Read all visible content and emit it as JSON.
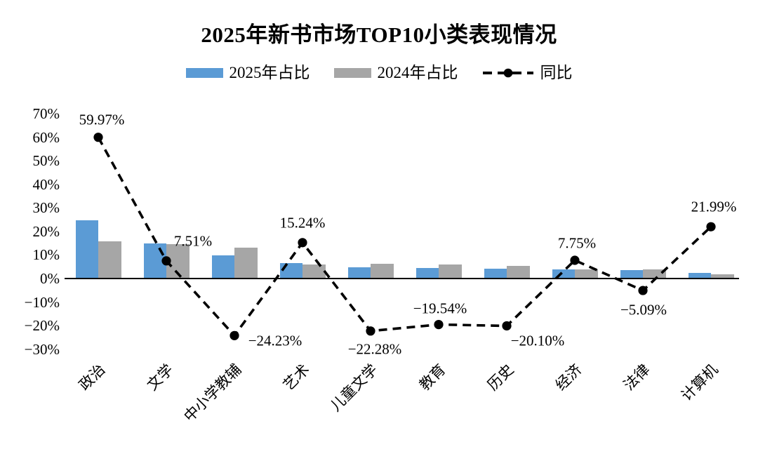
{
  "title": "2025年新书市场TOP10小类表现情况",
  "colors": {
    "bar_2025": "#5B9BD5",
    "bar_2024": "#A6A6A6",
    "line": "#000000",
    "axis": "#000000",
    "text": "#000000",
    "background": "#FFFFFF"
  },
  "legend": {
    "items": [
      {
        "label": "2025年占比",
        "swatch": "bar",
        "color": "#5B9BD5"
      },
      {
        "label": "2024年占比",
        "swatch": "bar",
        "color": "#A6A6A6"
      },
      {
        "label": "同比",
        "swatch": "dashed-line-dot",
        "color": "#000000"
      }
    ]
  },
  "chart_data": {
    "type": "bar",
    "subtype": "combo-bar-line",
    "title": "2025年新书市场TOP10小类表现情况",
    "categories": [
      "政治",
      "文学",
      "中小学教辅",
      "艺术",
      "儿童文学",
      "教育",
      "历史",
      "经济",
      "法律",
      "计算机"
    ],
    "series": [
      {
        "name": "2025年占比",
        "type": "bar",
        "color": "#5B9BD5",
        "values": [
          24.7,
          15.0,
          9.7,
          6.7,
          4.8,
          4.5,
          4.3,
          4.0,
          3.5,
          2.5
        ]
      },
      {
        "name": "2024年占比",
        "type": "bar",
        "color": "#A6A6A6",
        "values": [
          15.7,
          14.5,
          13.0,
          5.9,
          6.3,
          6.0,
          5.3,
          3.9,
          4.0,
          1.9
        ]
      },
      {
        "name": "同比",
        "type": "line",
        "style": "dashed",
        "marker": "circle",
        "color": "#000000",
        "values": [
          59.97,
          7.51,
          -24.23,
          15.24,
          -22.28,
          -19.54,
          -20.1,
          7.75,
          -5.09,
          21.99
        ],
        "labels": [
          "59.97%",
          "7.51%",
          "−24.23%",
          "15.24%",
          "−22.28%",
          "−19.54%",
          "−20.10%",
          "7.75%",
          "−5.09%",
          "21.99%"
        ],
        "label_offsets": [
          [
            5,
            -25
          ],
          [
            38,
            -28
          ],
          [
            58,
            8
          ],
          [
            0,
            -28
          ],
          [
            6,
            26
          ],
          [
            2,
            -23
          ],
          [
            44,
            22
          ],
          [
            3,
            -24
          ],
          [
            1,
            28
          ],
          [
            4,
            -28
          ]
        ]
      }
    ],
    "y_axis": {
      "min": -30,
      "max": 70,
      "step": 10,
      "ticks": [
        "70%",
        "60%",
        "50%",
        "40%",
        "30%",
        "20%",
        "10%",
        "0%",
        "−10%",
        "−20%",
        "−30%"
      ]
    },
    "x_axis": {
      "label_rotation_deg": 45
    },
    "grid": false,
    "legend_position": "top"
  }
}
